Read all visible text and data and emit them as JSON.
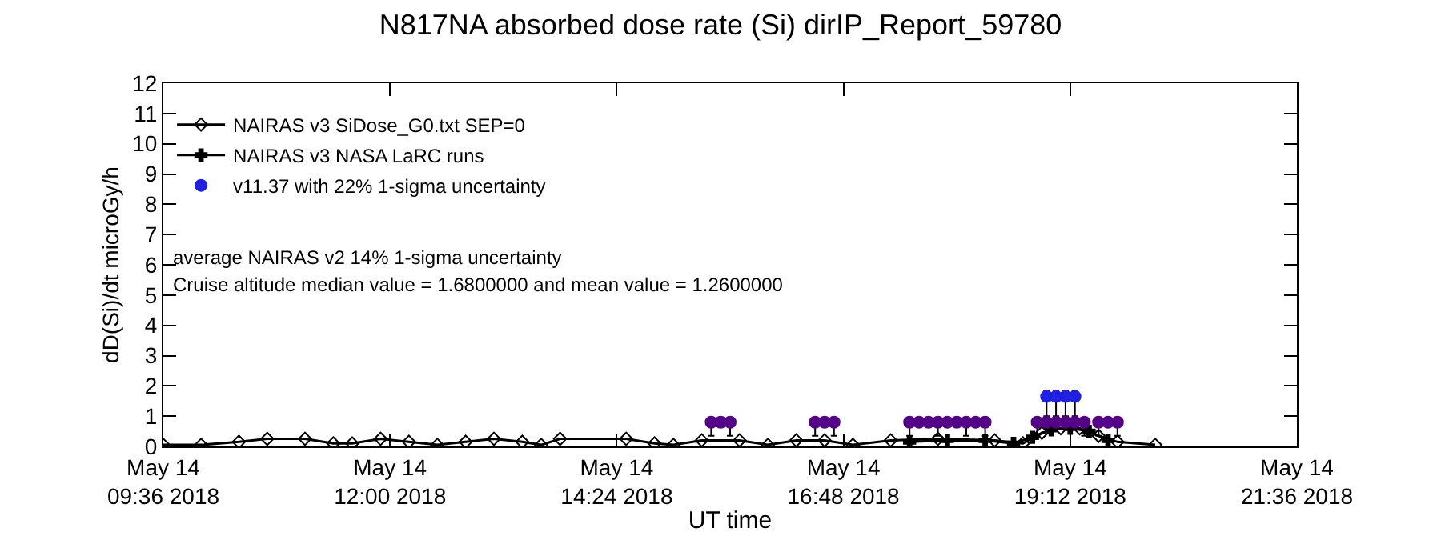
{
  "chart_data": {
    "type": "line",
    "title": "N817NA absorbed dose rate (Si) dirIP_Report_59780",
    "xlabel": "UT time",
    "ylabel": "dD(Si)/dt microGy/h",
    "xlim": [
      "2018-05-14T09:36",
      "2018-05-14T21:36"
    ],
    "xticks": [
      {
        "value": "2018-05-14T09:36",
        "label": "May 14\n09:36 2018"
      },
      {
        "value": "2018-05-14T12:00",
        "label": "May 14\n12:00 2018"
      },
      {
        "value": "2018-05-14T14:24",
        "label": "May 14\n14:24 2018"
      },
      {
        "value": "2018-05-14T16:48",
        "label": "May 14\n16:48 2018"
      },
      {
        "value": "2018-05-14T19:12",
        "label": "May 14\n19:12 2018"
      },
      {
        "value": "2018-05-14T21:36",
        "label": "May 14\n21:36 2018"
      }
    ],
    "ylim": [
      0,
      12
    ],
    "yticks": [
      0,
      1,
      2,
      3,
      4,
      5,
      6,
      7,
      8,
      9,
      10,
      11,
      12
    ],
    "legend": "top left",
    "annotations": [
      "average NAIRAS v2 14% 1-sigma uncertainty",
      "Cruise altitude median value = 1.6800000 and mean value = 1.2600000"
    ],
    "series": [
      {
        "name": "NAIRAS v3 SiDose_G0.txt SEP=0",
        "marker": "diamond",
        "color": "#000000",
        "x": [
          "2018-05-14T09:36",
          "2018-05-14T10:00",
          "2018-05-14T10:24",
          "2018-05-14T10:42",
          "2018-05-14T11:06",
          "2018-05-14T11:24",
          "2018-05-14T11:36",
          "2018-05-14T11:54",
          "2018-05-14T12:12",
          "2018-05-14T12:30",
          "2018-05-14T12:48",
          "2018-05-14T13:06",
          "2018-05-14T13:24",
          "2018-05-14T13:36",
          "2018-05-14T13:48",
          "2018-05-14T14:30",
          "2018-05-14T14:48",
          "2018-05-14T15:00",
          "2018-05-14T15:18",
          "2018-05-14T15:42",
          "2018-05-14T16:00",
          "2018-05-14T16:18",
          "2018-05-14T16:36",
          "2018-05-14T16:54",
          "2018-05-14T17:18",
          "2018-05-14T17:48",
          "2018-05-14T18:24",
          "2018-05-14T18:42",
          "2018-05-14T18:54",
          "2018-05-14T19:06",
          "2018-05-14T19:18",
          "2018-05-14T19:30",
          "2018-05-14T19:42",
          "2018-05-14T20:06"
        ],
        "values": [
          0.05,
          0.05,
          0.15,
          0.25,
          0.25,
          0.1,
          0.1,
          0.25,
          0.15,
          0.05,
          0.15,
          0.25,
          0.15,
          0.05,
          0.25,
          0.25,
          0.1,
          0.05,
          0.2,
          0.2,
          0.05,
          0.2,
          0.2,
          0.05,
          0.2,
          0.25,
          0.2,
          0.1,
          0.45,
          0.6,
          0.6,
          0.35,
          0.15,
          0.05
        ]
      },
      {
        "name": "NAIRAS v3 NASA LaRC runs",
        "marker": "cross",
        "color": "#000000",
        "x": [
          "2018-05-14T17:30",
          "2018-05-14T17:54",
          "2018-05-14T18:18",
          "2018-05-14T18:36",
          "2018-05-14T18:48",
          "2018-05-14T19:00",
          "2018-05-14T19:12",
          "2018-05-14T19:24",
          "2018-05-14T19:36"
        ],
        "values": [
          0.15,
          0.2,
          0.2,
          0.1,
          0.3,
          0.55,
          0.6,
          0.5,
          0.2
        ]
      },
      {
        "name": "v11.37 with 22% 1-sigma uncertainty",
        "type": "scatter",
        "marker": "circle",
        "colors": [
          "#2020e0",
          "#2020e0",
          "#2020e0",
          "#2020e0",
          "#550088",
          "#550088",
          "#550088",
          "#550088",
          "#550088",
          "#550088",
          "#550088",
          "#550088",
          "#550088",
          "#550088",
          "#550088",
          "#550088",
          "#550088",
          "#550088",
          "#550088",
          "#550088",
          "#550088",
          "#550088",
          "#550088",
          "#550088",
          "#550088",
          "#550088",
          "#550088",
          "#550088"
        ],
        "x": [
          "2018-05-14T18:57",
          "2018-05-14T19:03",
          "2018-05-14T19:09",
          "2018-05-14T19:15",
          "2018-05-14T15:24",
          "2018-05-14T15:30",
          "2018-05-14T15:36",
          "2018-05-14T16:30",
          "2018-05-14T16:36",
          "2018-05-14T16:42",
          "2018-05-14T17:30",
          "2018-05-14T17:36",
          "2018-05-14T17:42",
          "2018-05-14T17:48",
          "2018-05-14T17:54",
          "2018-05-14T18:00",
          "2018-05-14T18:06",
          "2018-05-14T18:12",
          "2018-05-14T18:18",
          "2018-05-14T18:51",
          "2018-05-14T18:57",
          "2018-05-14T19:03",
          "2018-05-14T19:09",
          "2018-05-14T19:15",
          "2018-05-14T19:21",
          "2018-05-14T19:30",
          "2018-05-14T19:36",
          "2018-05-14T19:42"
        ],
        "values": [
          1.65,
          1.65,
          1.65,
          1.65,
          0.8,
          0.8,
          0.8,
          0.8,
          0.8,
          0.8,
          0.8,
          0.8,
          0.8,
          0.8,
          0.8,
          0.8,
          0.8,
          0.8,
          0.8,
          0.8,
          0.8,
          0.8,
          0.8,
          0.8,
          0.8,
          0.8,
          0.8,
          0.8
        ],
        "errors": [
          [
            1.0,
            1.85
          ],
          [
            1.0,
            1.85
          ],
          [
            1.0,
            1.85
          ],
          [
            1.0,
            1.85
          ],
          [
            0.35,
            0.8
          ],
          null,
          [
            0.35,
            0.8
          ],
          [
            0.35,
            0.8
          ],
          null,
          [
            0.35,
            0.8
          ],
          [
            0.35,
            0.8
          ],
          null,
          null,
          [
            0.35,
            0.8
          ],
          null,
          null,
          [
            0.35,
            0.8
          ],
          null,
          [
            0.35,
            0.8
          ],
          [
            0.35,
            0.8
          ],
          null,
          null,
          null,
          null,
          [
            0.35,
            0.8
          ],
          [
            0.35,
            0.8
          ],
          null,
          [
            0.35,
            0.8
          ]
        ]
      }
    ]
  }
}
